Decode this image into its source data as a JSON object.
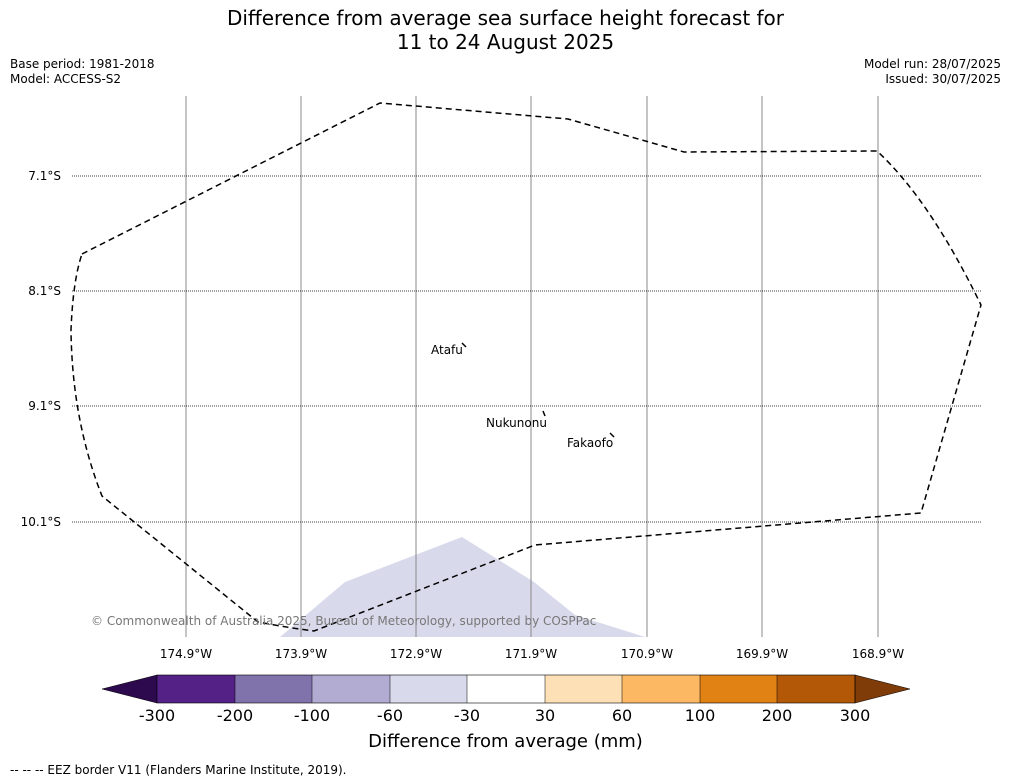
{
  "title_line1": "Difference from average sea surface height forecast for",
  "title_line2": "11 to 24 August 2025",
  "base_period": "Base period: 1981-2018",
  "model": "Model: ACCESS-S2",
  "model_run": "Model run: 28/07/2025",
  "issued": "Issued: 30/07/2025",
  "lat_labels": [
    "7.1°S",
    "8.1°S",
    "9.1°S",
    "10.1°S"
  ],
  "lon_labels": [
    "174.9°W",
    "173.9°W",
    "172.9°W",
    "171.9°W",
    "170.9°W",
    "169.9°W",
    "168.9°W"
  ],
  "places": [
    "Atafu",
    "Nukunonu",
    "Fakaofo"
  ],
  "copyright": "© Commonwealth of Australia 2025, Bureau of Meteorology, supported by COSPPac",
  "colorbar": {
    "ticks": [
      "-300",
      "-200",
      "-100",
      "-60",
      "-30",
      "30",
      "60",
      "100",
      "200",
      "300"
    ],
    "colors": [
      "#2d0a4e",
      "#542187",
      "#8073ac",
      "#b2abd2",
      "#d8daeb",
      "#ffffff",
      "#fee0b6",
      "#fdb863",
      "#e08214",
      "#b35806",
      "#7f3b08"
    ],
    "label": "Difference from average (mm)"
  },
  "legend": "-- -- -- EEZ border V11 (Flanders Marine Institute, 2019).",
  "anomaly_fill_color": "#d8daeb"
}
